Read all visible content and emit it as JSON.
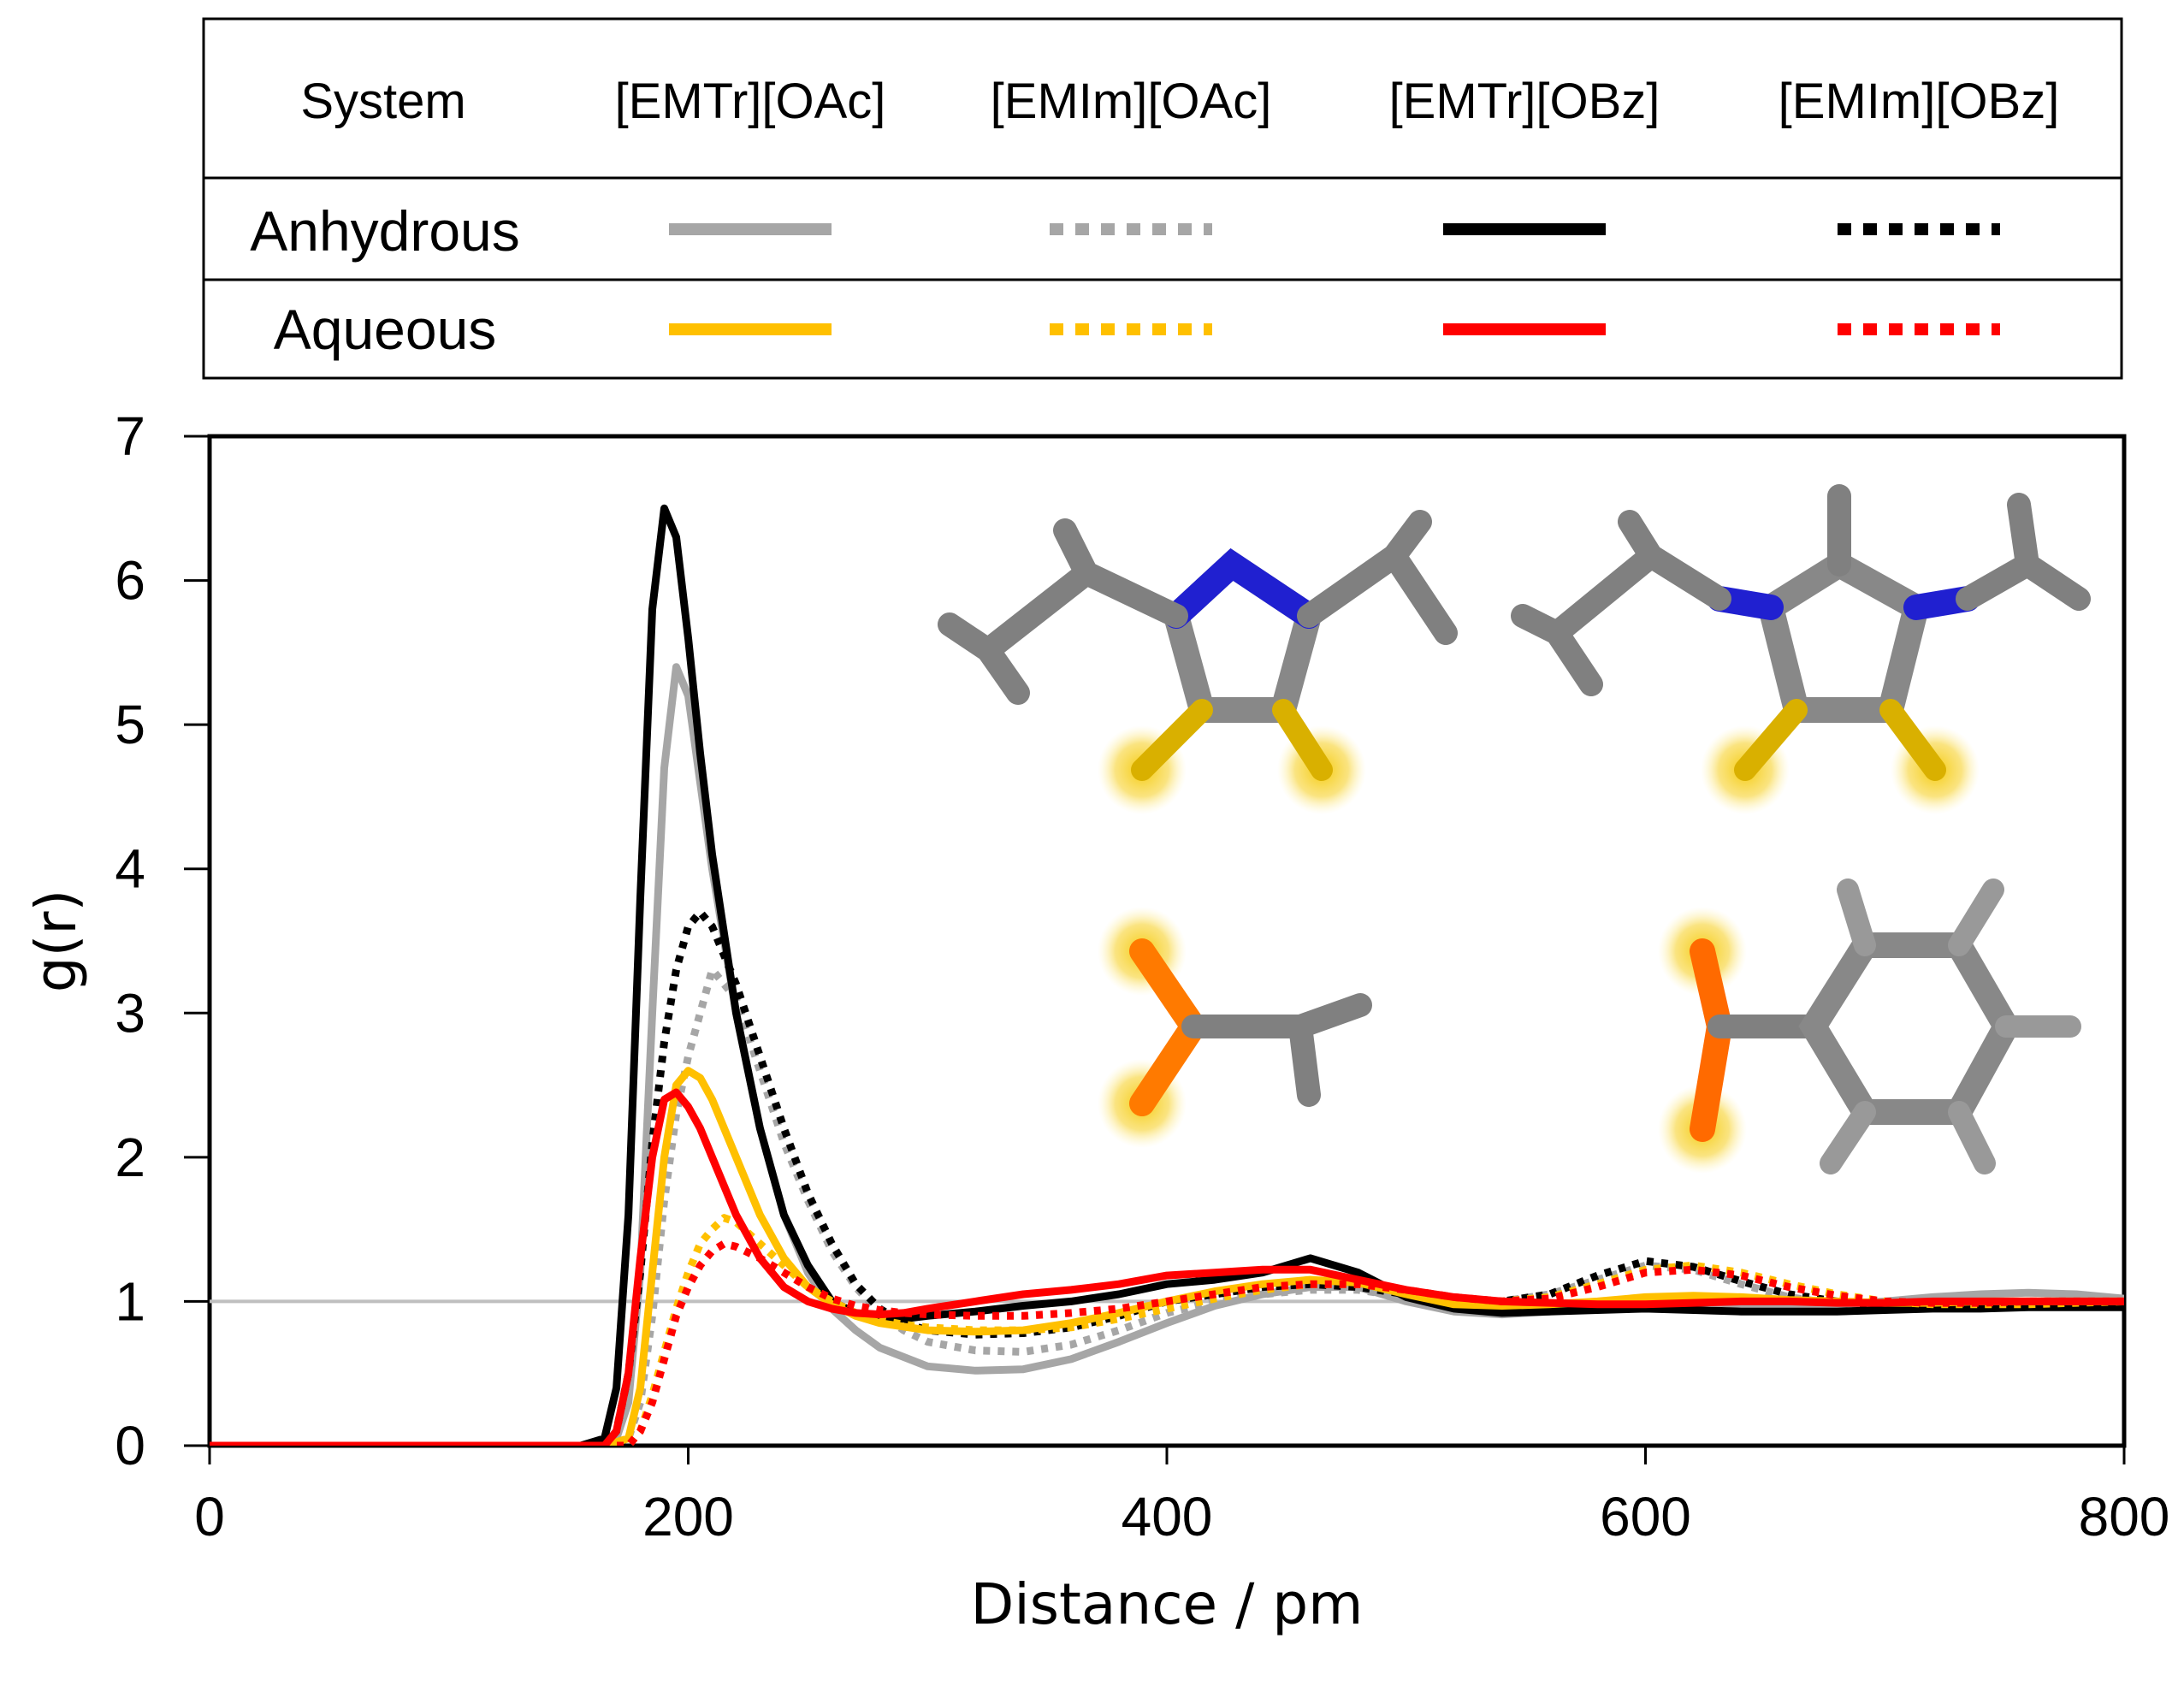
{
  "legend": {
    "header_label": "System",
    "systems": [
      "[EMTr][OAc]",
      "[EMIm][OAc]",
      "[EMTr][OBz]",
      "[EMIm][OBz]"
    ],
    "rows": [
      {
        "label": "Anhydrous",
        "styles": [
          {
            "color": "#a6a6a6",
            "dash": "solid"
          },
          {
            "color": "#a6a6a6",
            "dash": "dotted"
          },
          {
            "color": "#000000",
            "dash": "solid"
          },
          {
            "color": "#000000",
            "dash": "dotted"
          }
        ]
      },
      {
        "label": "Aqueous",
        "styles": [
          {
            "color": "#ffc000",
            "dash": "solid"
          },
          {
            "color": "#ffc000",
            "dash": "dotted"
          },
          {
            "color": "#ff0000",
            "dash": "solid"
          },
          {
            "color": "#ff0000",
            "dash": "dotted"
          }
        ]
      }
    ]
  },
  "chart_data": {
    "type": "line",
    "xlabel": "Distance / pm",
    "ylabel": "g(r)",
    "xlim": [
      0,
      800
    ],
    "ylim": [
      0,
      7
    ],
    "xticks": [
      0,
      200,
      400,
      600,
      800
    ],
    "yticks": [
      0,
      1,
      2,
      3,
      4,
      5,
      6,
      7
    ],
    "reference_line": {
      "y": 1,
      "color": "#bfbfbf"
    },
    "series": [
      {
        "name": "[EMTr][OAc] Anhydrous",
        "color": "#a6a6a6",
        "dash": "solid",
        "x": [
          0,
          160,
          170,
          175,
          180,
          185,
          190,
          195,
          200,
          205,
          210,
          220,
          230,
          240,
          250,
          260,
          270,
          280,
          300,
          320,
          340,
          360,
          380,
          400,
          420,
          440,
          460,
          480,
          500,
          520,
          540,
          560,
          580,
          600,
          620,
          640,
          660,
          680,
          700,
          720,
          740,
          760,
          780,
          800
        ],
        "y": [
          0,
          0,
          0.05,
          0.3,
          1.2,
          3.0,
          4.7,
          5.4,
          5.2,
          4.6,
          4.0,
          3.0,
          2.2,
          1.6,
          1.2,
          0.95,
          0.8,
          0.68,
          0.55,
          0.52,
          0.53,
          0.6,
          0.72,
          0.85,
          0.97,
          1.05,
          1.1,
          1.1,
          1.0,
          0.93,
          0.91,
          0.93,
          0.97,
          1.0,
          1.0,
          0.98,
          0.96,
          0.98,
          1.0,
          1.03,
          1.05,
          1.06,
          1.05,
          1.02
        ]
      },
      {
        "name": "[EMIm][OAc] Anhydrous",
        "color": "#a6a6a6",
        "dash": "dotted",
        "x": [
          0,
          165,
          175,
          180,
          185,
          190,
          195,
          200,
          205,
          210,
          220,
          230,
          240,
          250,
          260,
          270,
          280,
          290,
          300,
          320,
          340,
          360,
          380,
          400,
          420,
          440,
          460,
          480,
          500,
          520,
          540,
          560,
          580,
          600,
          620,
          640,
          660,
          680,
          700,
          720,
          740,
          760,
          780,
          800
        ],
        "y": [
          0,
          0,
          0.05,
          0.3,
          0.9,
          1.7,
          2.3,
          2.7,
          3.0,
          3.3,
          3.1,
          2.6,
          2.1,
          1.7,
          1.35,
          1.1,
          0.92,
          0.8,
          0.72,
          0.66,
          0.65,
          0.7,
          0.8,
          0.92,
          1.0,
          1.05,
          1.08,
          1.08,
          1.03,
          0.98,
          1.0,
          1.05,
          1.15,
          1.25,
          1.22,
          1.12,
          1.03,
          0.98,
          0.97,
          0.98,
          1.0,
          1.0,
          1.0,
          1.0
        ]
      },
      {
        "name": "[EMTr][OBz] Anhydrous",
        "color": "#000000",
        "dash": "solid",
        "x": [
          0,
          155,
          165,
          170,
          175,
          180,
          185,
          190,
          195,
          200,
          205,
          210,
          220,
          230,
          240,
          250,
          260,
          270,
          280,
          290,
          300,
          320,
          340,
          360,
          380,
          400,
          420,
          440,
          460,
          480,
          500,
          520,
          540,
          560,
          580,
          600,
          620,
          640,
          660,
          680,
          700,
          720,
          740,
          760,
          780,
          800
        ],
        "y": [
          0,
          0,
          0.05,
          0.4,
          1.6,
          3.8,
          5.8,
          6.5,
          6.3,
          5.6,
          4.8,
          4.1,
          3.0,
          2.2,
          1.6,
          1.25,
          1.0,
          0.92,
          0.88,
          0.88,
          0.9,
          0.93,
          0.97,
          1.0,
          1.05,
          1.12,
          1.15,
          1.2,
          1.3,
          1.2,
          1.03,
          0.95,
          0.92,
          0.93,
          0.94,
          0.95,
          0.94,
          0.93,
          0.93,
          0.93,
          0.94,
          0.95,
          0.95,
          0.96,
          0.96,
          0.96
        ]
      },
      {
        "name": "[EMIm][OBz] Anhydrous",
        "color": "#000000",
        "dash": "dotted",
        "x": [
          0,
          165,
          170,
          175,
          180,
          185,
          190,
          195,
          200,
          205,
          210,
          220,
          230,
          240,
          250,
          260,
          270,
          280,
          290,
          300,
          320,
          340,
          360,
          380,
          400,
          420,
          440,
          460,
          480,
          500,
          520,
          540,
          560,
          580,
          600,
          620,
          640,
          660,
          680,
          700,
          720,
          740,
          760,
          780,
          800
        ],
        "y": [
          0,
          0,
          0.1,
          0.5,
          1.2,
          2.1,
          2.8,
          3.3,
          3.6,
          3.7,
          3.6,
          3.2,
          2.7,
          2.2,
          1.75,
          1.4,
          1.12,
          0.95,
          0.85,
          0.8,
          0.77,
          0.78,
          0.82,
          0.9,
          1.0,
          1.05,
          1.1,
          1.12,
          1.1,
          1.05,
          1.0,
          1.0,
          1.05,
          1.18,
          1.28,
          1.24,
          1.14,
          1.05,
          1.0,
          0.97,
          0.96,
          0.97,
          0.98,
          0.98,
          0.98
        ]
      },
      {
        "name": "[EMTr][OAc] Aqueous",
        "color": "#ffc000",
        "dash": "solid",
        "x": [
          0,
          165,
          175,
          180,
          185,
          190,
          195,
          200,
          205,
          210,
          220,
          230,
          240,
          250,
          260,
          270,
          280,
          300,
          320,
          340,
          360,
          380,
          400,
          420,
          440,
          460,
          480,
          500,
          520,
          540,
          560,
          580,
          600,
          620,
          640,
          660,
          680,
          700,
          720,
          740,
          760,
          780,
          800
        ],
        "y": [
          0,
          0,
          0.05,
          0.4,
          1.2,
          2.0,
          2.5,
          2.6,
          2.55,
          2.4,
          2.0,
          1.6,
          1.3,
          1.1,
          0.98,
          0.9,
          0.85,
          0.8,
          0.79,
          0.8,
          0.85,
          0.92,
          1.0,
          1.07,
          1.12,
          1.15,
          1.13,
          1.05,
          0.98,
          0.97,
          0.98,
          1.0,
          1.03,
          1.04,
          1.03,
          1.01,
          1.0,
          0.99,
          0.99,
          1.0,
          1.0,
          1.0,
          1.0
        ]
      },
      {
        "name": "[EMIm][OAc] Aqueous",
        "color": "#ffc000",
        "dash": "dotted",
        "x": [
          0,
          175,
          180,
          185,
          190,
          195,
          200,
          205,
          210,
          215,
          220,
          230,
          240,
          250,
          260,
          270,
          280,
          290,
          300,
          320,
          340,
          360,
          380,
          400,
          420,
          440,
          460,
          480,
          500,
          520,
          540,
          560,
          580,
          600,
          620,
          640,
          660,
          680,
          700,
          720,
          740,
          760,
          780,
          800
        ],
        "y": [
          0,
          0,
          0.1,
          0.35,
          0.65,
          0.95,
          1.2,
          1.4,
          1.5,
          1.58,
          1.55,
          1.4,
          1.25,
          1.1,
          1.0,
          0.92,
          0.87,
          0.84,
          0.82,
          0.8,
          0.8,
          0.82,
          0.88,
          0.95,
          1.02,
          1.08,
          1.12,
          1.12,
          1.08,
          1.02,
          1.0,
          1.03,
          1.12,
          1.22,
          1.25,
          1.2,
          1.12,
          1.05,
          1.0,
          0.98,
          0.98,
          0.98,
          0.99,
          1.0
        ]
      },
      {
        "name": "[EMTr][OBz] Aqueous",
        "color": "#ff0000",
        "dash": "solid",
        "x": [
          0,
          165,
          170,
          175,
          180,
          185,
          190,
          195,
          200,
          205,
          210,
          220,
          230,
          240,
          250,
          260,
          270,
          280,
          290,
          300,
          320,
          340,
          360,
          380,
          400,
          420,
          440,
          460,
          480,
          500,
          520,
          540,
          560,
          580,
          600,
          620,
          640,
          660,
          680,
          700,
          720,
          740,
          760,
          780,
          800
        ],
        "y": [
          0,
          0,
          0.1,
          0.5,
          1.3,
          2.0,
          2.4,
          2.45,
          2.35,
          2.2,
          2.0,
          1.6,
          1.3,
          1.1,
          1.0,
          0.95,
          0.92,
          0.91,
          0.92,
          0.95,
          1.0,
          1.05,
          1.08,
          1.12,
          1.18,
          1.2,
          1.22,
          1.22,
          1.15,
          1.08,
          1.03,
          1.0,
          0.99,
          0.98,
          0.98,
          0.99,
          1.0,
          1.0,
          0.99,
          0.99,
          1.0,
          1.0,
          1.0,
          1.0,
          1.0
        ]
      },
      {
        "name": "[EMIm][OBz] Aqueous",
        "color": "#ff0000",
        "dash": "dotted",
        "x": [
          0,
          175,
          180,
          185,
          190,
          195,
          200,
          205,
          210,
          215,
          220,
          230,
          240,
          250,
          260,
          270,
          280,
          290,
          300,
          320,
          340,
          360,
          380,
          400,
          420,
          440,
          460,
          480,
          500,
          520,
          540,
          560,
          580,
          600,
          620,
          640,
          660,
          680,
          700,
          720,
          740,
          760,
          780,
          800
        ],
        "y": [
          0,
          0,
          0.1,
          0.3,
          0.6,
          0.9,
          1.1,
          1.25,
          1.35,
          1.4,
          1.38,
          1.3,
          1.2,
          1.1,
          1.02,
          0.97,
          0.94,
          0.92,
          0.91,
          0.9,
          0.9,
          0.92,
          0.95,
          1.0,
          1.05,
          1.1,
          1.12,
          1.12,
          1.08,
          1.03,
          1.0,
          1.02,
          1.1,
          1.2,
          1.22,
          1.18,
          1.1,
          1.04,
          1.0,
          0.99,
          0.99,
          1.0,
          1.0,
          1.0
        ]
      }
    ]
  }
}
